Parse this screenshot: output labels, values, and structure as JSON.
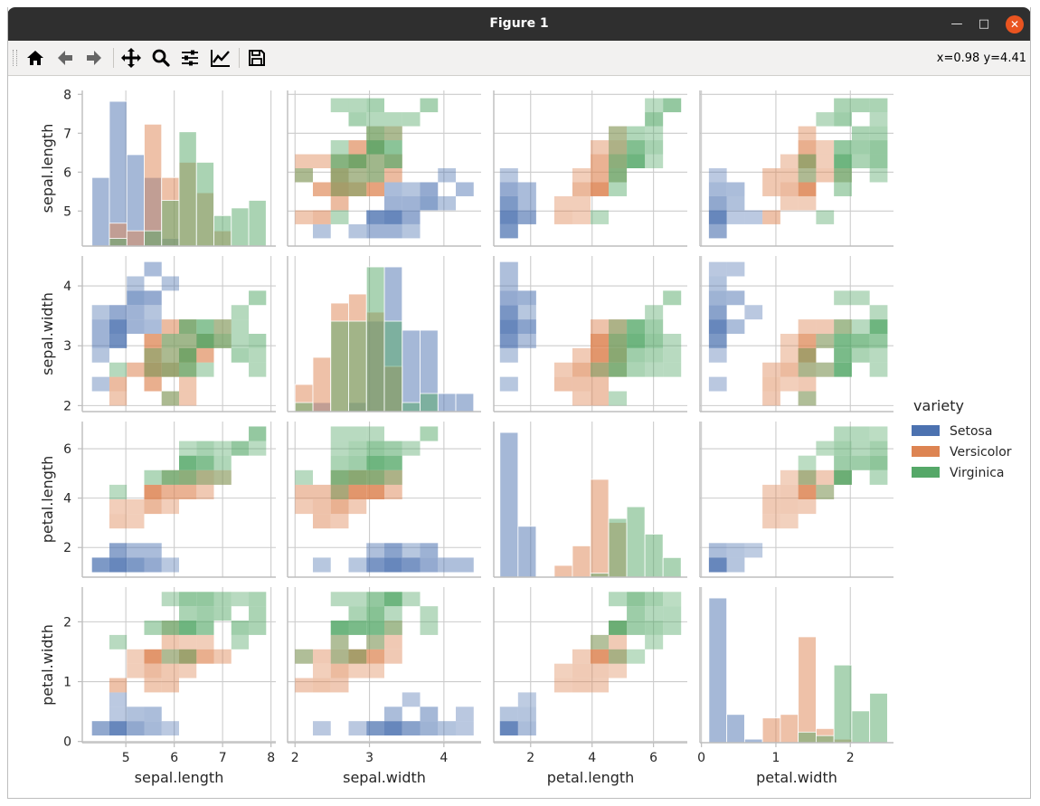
{
  "window": {
    "title": "Figure 1"
  },
  "toolbar": {
    "buttons": [
      "home-icon",
      "back-icon",
      "forward-icon",
      "pan-icon",
      "zoom-icon",
      "configure-subplots-icon",
      "edit-axis-icon",
      "save-icon"
    ],
    "coords": "x=0.98 y=4.41"
  },
  "chart_data": {
    "type": "heatmap",
    "description_kind": "pairplot",
    "variables": [
      "sepal.length",
      "sepal.width",
      "petal.length",
      "petal.width"
    ],
    "ranges": {
      "sepal.length": [
        4.1,
        8.1
      ],
      "sepal.width": [
        1.9,
        4.5
      ],
      "petal.length": [
        0.8,
        7.1
      ],
      "petal.width": [
        -0.02,
        2.58
      ]
    },
    "ticks": {
      "sepal.length": [
        5,
        6,
        7,
        8
      ],
      "sepal.width": [
        2,
        3,
        4
      ],
      "petal.length": [
        2,
        4,
        6
      ],
      "petal.width": [
        0,
        1,
        2
      ]
    },
    "legend": {
      "title": "variety",
      "placement": "right",
      "entries": [
        {
          "name": "Setosa",
          "color": "#4c72b0"
        },
        {
          "name": "Versicolor",
          "color": "#dd8452"
        },
        {
          "name": "Virginica",
          "color": "#55a868"
        }
      ]
    },
    "grid": true,
    "bins": 10,
    "species": [
      "Setosa",
      "Versicolor",
      "Virginica"
    ],
    "data": {
      "Setosa": [
        [
          5.1,
          3.5,
          1.4,
          0.2
        ],
        [
          4.9,
          3.0,
          1.4,
          0.2
        ],
        [
          4.7,
          3.2,
          1.3,
          0.2
        ],
        [
          4.6,
          3.1,
          1.5,
          0.2
        ],
        [
          5.0,
          3.6,
          1.4,
          0.2
        ],
        [
          5.4,
          3.9,
          1.7,
          0.4
        ],
        [
          4.6,
          3.4,
          1.4,
          0.3
        ],
        [
          5.0,
          3.4,
          1.5,
          0.2
        ],
        [
          4.4,
          2.9,
          1.4,
          0.2
        ],
        [
          4.9,
          3.1,
          1.5,
          0.1
        ],
        [
          5.4,
          3.7,
          1.5,
          0.2
        ],
        [
          4.8,
          3.4,
          1.6,
          0.2
        ],
        [
          4.8,
          3.0,
          1.4,
          0.1
        ],
        [
          4.3,
          3.0,
          1.1,
          0.1
        ],
        [
          5.8,
          4.0,
          1.2,
          0.2
        ],
        [
          5.7,
          4.4,
          1.5,
          0.4
        ],
        [
          5.4,
          3.9,
          1.3,
          0.4
        ],
        [
          5.1,
          3.5,
          1.4,
          0.3
        ],
        [
          5.7,
          3.8,
          1.7,
          0.3
        ],
        [
          5.1,
          3.8,
          1.5,
          0.3
        ],
        [
          5.4,
          3.4,
          1.7,
          0.2
        ],
        [
          5.1,
          3.7,
          1.5,
          0.4
        ],
        [
          4.6,
          3.6,
          1.0,
          0.2
        ],
        [
          5.1,
          3.3,
          1.7,
          0.5
        ],
        [
          4.8,
          3.4,
          1.9,
          0.2
        ],
        [
          5.0,
          3.0,
          1.6,
          0.2
        ],
        [
          5.0,
          3.4,
          1.6,
          0.4
        ],
        [
          5.2,
          3.5,
          1.5,
          0.2
        ],
        [
          5.2,
          3.4,
          1.4,
          0.2
        ],
        [
          4.7,
          3.2,
          1.6,
          0.2
        ],
        [
          4.8,
          3.1,
          1.6,
          0.2
        ],
        [
          5.4,
          3.4,
          1.5,
          0.4
        ],
        [
          5.2,
          4.1,
          1.5,
          0.1
        ],
        [
          5.5,
          4.2,
          1.4,
          0.2
        ],
        [
          4.9,
          3.1,
          1.5,
          0.2
        ],
        [
          5.0,
          3.2,
          1.2,
          0.2
        ],
        [
          5.5,
          3.5,
          1.3,
          0.2
        ],
        [
          4.9,
          3.6,
          1.4,
          0.1
        ],
        [
          4.4,
          3.0,
          1.3,
          0.2
        ],
        [
          5.1,
          3.4,
          1.5,
          0.2
        ],
        [
          5.0,
          3.5,
          1.3,
          0.3
        ],
        [
          4.5,
          2.3,
          1.3,
          0.3
        ],
        [
          4.4,
          3.2,
          1.3,
          0.2
        ],
        [
          5.0,
          3.5,
          1.6,
          0.6
        ],
        [
          5.1,
          3.8,
          1.9,
          0.4
        ],
        [
          4.8,
          3.0,
          1.4,
          0.3
        ],
        [
          5.1,
          3.8,
          1.6,
          0.2
        ],
        [
          4.6,
          3.2,
          1.4,
          0.2
        ],
        [
          5.3,
          3.7,
          1.5,
          0.2
        ],
        [
          5.0,
          3.3,
          1.4,
          0.2
        ]
      ],
      "Versicolor": [
        [
          7.0,
          3.2,
          4.7,
          1.4
        ],
        [
          6.4,
          3.2,
          4.5,
          1.5
        ],
        [
          6.9,
          3.1,
          4.9,
          1.5
        ],
        [
          5.5,
          2.3,
          4.0,
          1.3
        ],
        [
          6.5,
          2.8,
          4.6,
          1.5
        ],
        [
          5.7,
          2.8,
          4.5,
          1.3
        ],
        [
          6.3,
          3.3,
          4.7,
          1.6
        ],
        [
          4.9,
          2.4,
          3.3,
          1.0
        ],
        [
          6.6,
          2.9,
          4.6,
          1.3
        ],
        [
          5.2,
          2.7,
          3.9,
          1.4
        ],
        [
          5.0,
          2.0,
          3.5,
          1.0
        ],
        [
          5.9,
          3.0,
          4.2,
          1.5
        ],
        [
          6.0,
          2.2,
          4.0,
          1.0
        ],
        [
          6.1,
          2.9,
          4.7,
          1.4
        ],
        [
          5.6,
          2.9,
          3.6,
          1.3
        ],
        [
          6.7,
          3.1,
          4.4,
          1.4
        ],
        [
          5.6,
          3.0,
          4.5,
          1.5
        ],
        [
          5.8,
          2.7,
          4.1,
          1.0
        ],
        [
          6.2,
          2.2,
          4.5,
          1.5
        ],
        [
          5.6,
          2.5,
          3.9,
          1.1
        ],
        [
          5.9,
          3.2,
          4.8,
          1.8
        ],
        [
          6.1,
          2.8,
          4.0,
          1.3
        ],
        [
          6.3,
          2.5,
          4.9,
          1.5
        ],
        [
          6.1,
          2.8,
          4.7,
          1.2
        ],
        [
          6.4,
          2.9,
          4.3,
          1.3
        ],
        [
          6.6,
          3.0,
          4.4,
          1.4
        ],
        [
          6.8,
          2.8,
          4.8,
          1.4
        ],
        [
          6.7,
          3.0,
          5.0,
          1.7
        ],
        [
          6.0,
          2.9,
          4.5,
          1.5
        ],
        [
          5.7,
          2.6,
          3.5,
          1.0
        ],
        [
          5.5,
          2.4,
          3.8,
          1.1
        ],
        [
          5.5,
          2.4,
          3.7,
          1.0
        ],
        [
          5.8,
          2.7,
          3.9,
          1.2
        ],
        [
          6.0,
          2.7,
          5.1,
          1.6
        ],
        [
          5.4,
          3.0,
          4.5,
          1.5
        ],
        [
          6.0,
          3.4,
          4.5,
          1.6
        ],
        [
          6.7,
          3.1,
          4.7,
          1.5
        ],
        [
          6.3,
          2.3,
          4.4,
          1.3
        ],
        [
          5.6,
          3.0,
          4.1,
          1.3
        ],
        [
          5.5,
          2.5,
          4.0,
          1.3
        ],
        [
          5.5,
          2.6,
          4.4,
          1.2
        ],
        [
          6.1,
          3.0,
          4.6,
          1.4
        ],
        [
          5.8,
          2.6,
          4.0,
          1.2
        ],
        [
          5.0,
          2.3,
          3.3,
          1.0
        ],
        [
          5.6,
          2.7,
          4.2,
          1.3
        ],
        [
          5.7,
          3.0,
          4.2,
          1.2
        ],
        [
          5.7,
          2.9,
          4.2,
          1.3
        ],
        [
          6.2,
          2.9,
          4.3,
          1.3
        ],
        [
          5.1,
          2.5,
          3.0,
          1.1
        ],
        [
          5.7,
          2.8,
          4.1,
          1.3
        ]
      ],
      "Virginica": [
        [
          6.3,
          3.3,
          6.0,
          2.5
        ],
        [
          5.8,
          2.7,
          5.1,
          1.9
        ],
        [
          7.1,
          3.0,
          5.9,
          2.1
        ],
        [
          6.3,
          2.9,
          5.6,
          1.8
        ],
        [
          6.5,
          3.0,
          5.8,
          2.2
        ],
        [
          7.6,
          3.0,
          6.6,
          2.1
        ],
        [
          4.9,
          2.5,
          4.5,
          1.7
        ],
        [
          7.3,
          2.9,
          6.3,
          1.8
        ],
        [
          6.7,
          2.5,
          5.8,
          1.8
        ],
        [
          7.2,
          3.6,
          6.1,
          2.5
        ],
        [
          6.5,
          3.2,
          5.1,
          2.0
        ],
        [
          6.4,
          2.7,
          5.3,
          1.9
        ],
        [
          6.8,
          3.0,
          5.5,
          2.1
        ],
        [
          5.7,
          2.5,
          5.0,
          2.0
        ],
        [
          5.8,
          2.8,
          5.1,
          2.4
        ],
        [
          6.4,
          3.2,
          5.3,
          2.3
        ],
        [
          6.5,
          3.0,
          5.5,
          1.8
        ],
        [
          7.7,
          3.8,
          6.7,
          2.2
        ],
        [
          7.7,
          2.6,
          6.9,
          2.3
        ],
        [
          6.0,
          2.2,
          5.0,
          1.5
        ],
        [
          6.9,
          3.2,
          5.7,
          2.3
        ],
        [
          5.6,
          2.8,
          4.9,
          2.0
        ],
        [
          7.7,
          2.8,
          6.7,
          2.0
        ],
        [
          6.3,
          2.7,
          4.9,
          1.8
        ],
        [
          6.7,
          3.3,
          5.7,
          2.1
        ],
        [
          7.2,
          3.2,
          6.0,
          1.8
        ],
        [
          6.2,
          2.8,
          4.8,
          1.8
        ],
        [
          6.1,
          3.0,
          4.9,
          1.8
        ],
        [
          6.4,
          2.8,
          5.6,
          2.1
        ],
        [
          7.2,
          3.0,
          5.8,
          1.6
        ],
        [
          7.4,
          2.8,
          6.1,
          1.9
        ],
        [
          7.9,
          3.8,
          6.4,
          2.0
        ],
        [
          6.4,
          2.8,
          5.6,
          2.2
        ],
        [
          6.3,
          2.8,
          5.1,
          1.5
        ],
        [
          6.1,
          2.6,
          5.6,
          1.4
        ],
        [
          7.7,
          3.0,
          6.1,
          2.3
        ],
        [
          6.3,
          3.4,
          5.6,
          2.4
        ],
        [
          6.4,
          3.1,
          5.5,
          1.8
        ],
        [
          6.0,
          3.0,
          4.8,
          1.8
        ],
        [
          6.9,
          3.1,
          5.4,
          2.1
        ],
        [
          6.7,
          3.1,
          5.6,
          2.4
        ],
        [
          6.9,
          3.1,
          5.1,
          2.3
        ],
        [
          5.8,
          2.7,
          5.1,
          1.9
        ],
        [
          6.8,
          3.2,
          5.9,
          2.3
        ],
        [
          6.7,
          3.3,
          5.7,
          2.5
        ],
        [
          6.7,
          3.0,
          5.2,
          2.3
        ],
        [
          6.3,
          2.5,
          5.0,
          1.9
        ],
        [
          6.5,
          3.0,
          5.2,
          2.0
        ],
        [
          6.2,
          3.4,
          5.4,
          2.3
        ],
        [
          5.9,
          3.0,
          5.1,
          1.8
        ]
      ]
    }
  }
}
